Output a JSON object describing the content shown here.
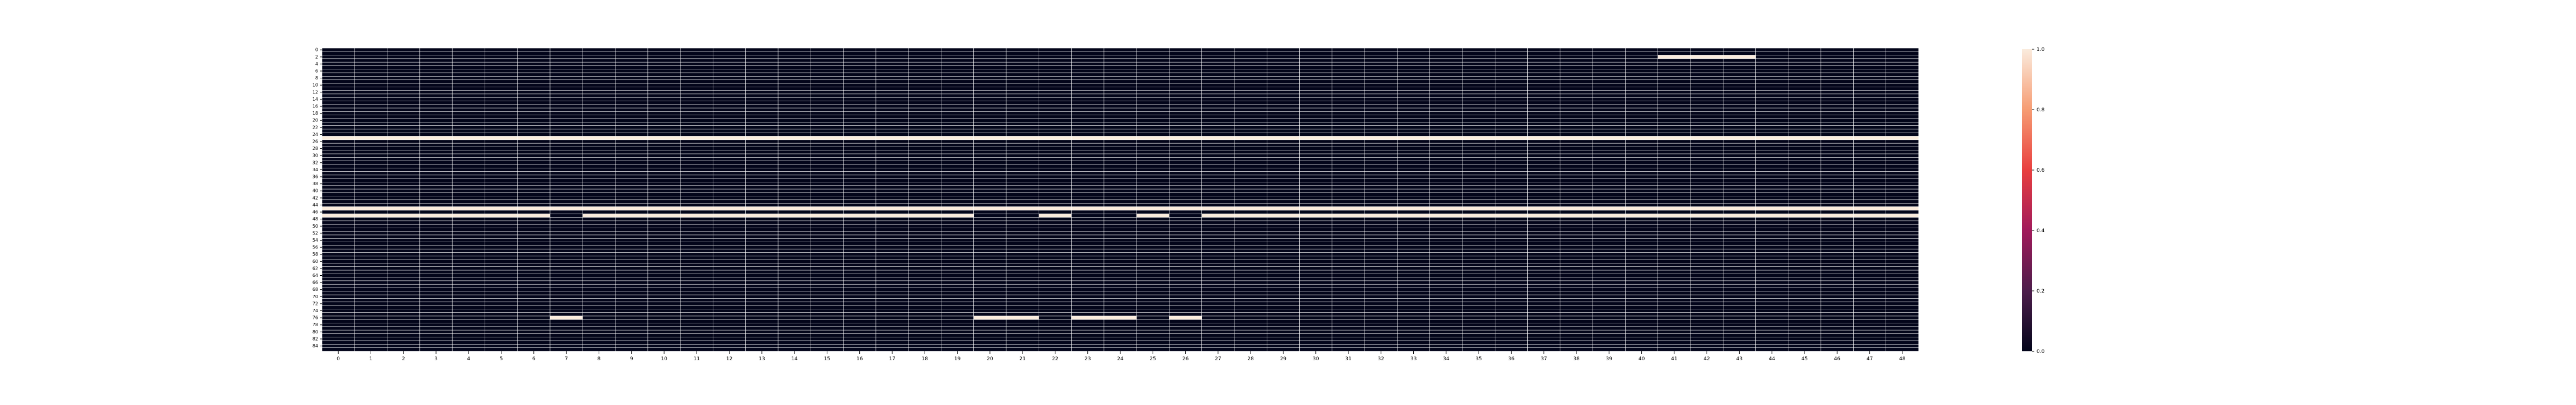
{
  "chart_data": {
    "type": "heatmap",
    "title": "",
    "xlabel": "",
    "ylabel": "",
    "n_cols": 49,
    "n_rows": 86,
    "x_tick_labels": [
      "0",
      "1",
      "2",
      "3",
      "4",
      "5",
      "6",
      "7",
      "8",
      "9",
      "10",
      "11",
      "12",
      "13",
      "14",
      "15",
      "16",
      "17",
      "18",
      "19",
      "20",
      "21",
      "22",
      "23",
      "24",
      "25",
      "26",
      "27",
      "28",
      "29",
      "30",
      "31",
      "32",
      "33",
      "34",
      "35",
      "36",
      "37",
      "38",
      "39",
      "40",
      "41",
      "42",
      "43",
      "44",
      "45",
      "46",
      "47",
      "48"
    ],
    "y_tick_labels": [
      "0",
      "2",
      "4",
      "6",
      "8",
      "10",
      "12",
      "14",
      "16",
      "18",
      "20",
      "22",
      "24",
      "26",
      "28",
      "30",
      "32",
      "34",
      "36",
      "38",
      "40",
      "42",
      "44",
      "46",
      "48",
      "50",
      "52",
      "54",
      "56",
      "58",
      "60",
      "62",
      "64",
      "66",
      "68",
      "70",
      "72",
      "74",
      "76",
      "78",
      "80",
      "82",
      "84"
    ],
    "value_range": [
      0,
      1
    ],
    "cell_value_default": 0,
    "full_rows_value_1": [
      25,
      45,
      47
    ],
    "hot_cells": [
      {
        "row": 2,
        "cols": [
          41,
          42,
          43
        ],
        "value": 1
      },
      {
        "row": 45,
        "cols": [
          7,
          20,
          21,
          23,
          24,
          26,
          41,
          42,
          43
        ],
        "value": 1
      },
      {
        "row": 76,
        "cols": [
          7,
          20,
          21,
          23,
          24,
          26
        ],
        "value": 1
      }
    ],
    "cold_cells": [
      {
        "row": 47,
        "cols": [
          7,
          20,
          21,
          23,
          24,
          26
        ],
        "value": 0
      }
    ],
    "colorbar": {
      "ticks": [
        0.0,
        0.2,
        0.4,
        0.6,
        0.8,
        1.0
      ],
      "tick_labels": [
        "0.0",
        "0.2",
        "0.4",
        "0.6",
        "0.8",
        "1.0"
      ],
      "colors": [
        "#03051a",
        "#4c1d4b",
        "#a11a5b",
        "#e83f3f",
        "#f69c73",
        "#faebdd"
      ]
    },
    "grid_line_color": "#ffffff",
    "grid": true,
    "legend": "colorbar-right"
  }
}
